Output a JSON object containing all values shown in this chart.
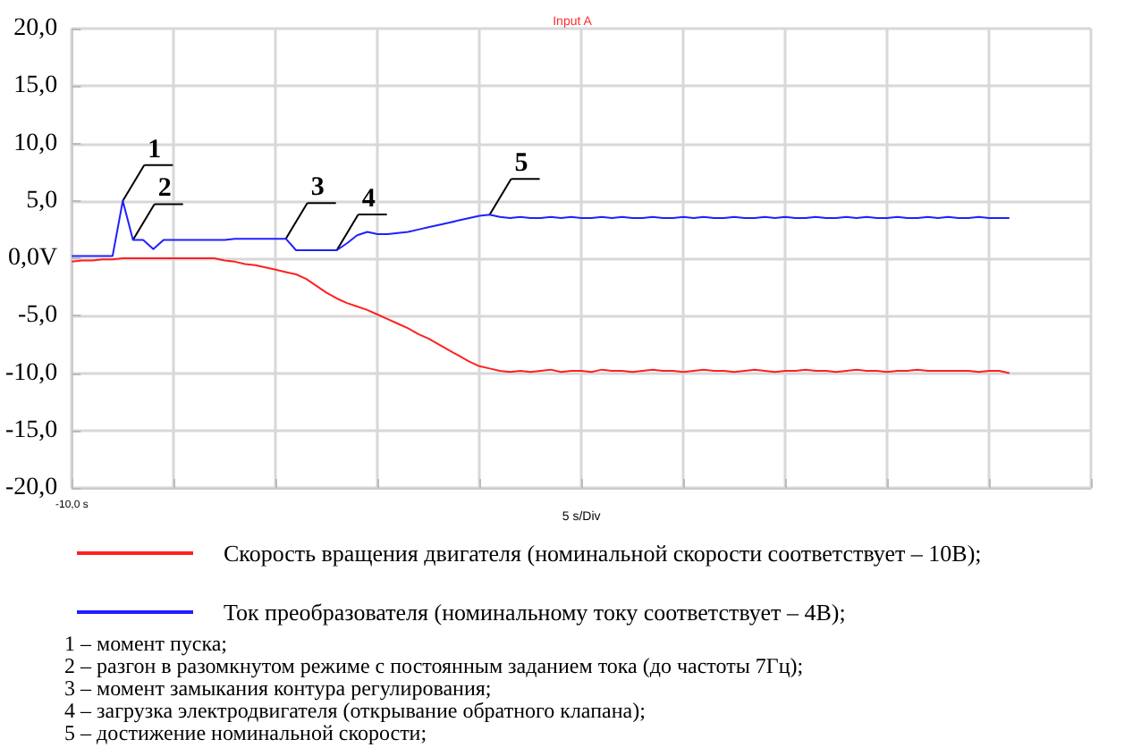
{
  "chart_data": {
    "type": "line",
    "title": "Input A",
    "xlabel": "5 s/Div",
    "categories": [
      null,
      null,
      null,
      null,
      null,
      null,
      null,
      null,
      null,
      null,
      null,
      null,
      null,
      null,
      null,
      null,
      null,
      null,
      null,
      null,
      null,
      null,
      null,
      null,
      null,
      null,
      null,
      null,
      null,
      null,
      null,
      null,
      null,
      null,
      null,
      null,
      null,
      null,
      null,
      null,
      null,
      null,
      null,
      null,
      null,
      null,
      null,
      null,
      null,
      null,
      null,
      null,
      null,
      null,
      null,
      null,
      null,
      null,
      null,
      null,
      null,
      null,
      null,
      null,
      null,
      null,
      null,
      null,
      null,
      null,
      null,
      null,
      null,
      null,
      null,
      null,
      null,
      null,
      null,
      null,
      null,
      null,
      null,
      null,
      null,
      null,
      null,
      null,
      null,
      null,
      null,
      null,
      null,
      null,
      null,
      null,
      null,
      null,
      null,
      null,
      null
    ],
    "ylim": [
      -20,
      20
    ],
    "yticks": [
      {
        "value": -20,
        "label": "-20,0"
      },
      {
        "value": -15,
        "label": "-15,0"
      },
      {
        "value": -10,
        "label": "-10,0"
      },
      {
        "value": -5,
        "label": "-5,0"
      },
      {
        "value": 0,
        "label": "0,0V"
      },
      {
        "value": 5,
        "label": "5,0"
      },
      {
        "value": 10,
        "label": "10,0"
      },
      {
        "value": 15,
        "label": "15,0"
      },
      {
        "value": 20,
        "label": "20,0"
      }
    ],
    "grid": true,
    "legend": "bottom",
    "series": [
      {
        "name": "Скорость вращения двигателя (номинальной скорости соответствует – 10В);",
        "color": "#ff2020",
        "values": [
          -0.3,
          -0.2,
          -0.2,
          -0.1,
          -0.1,
          0,
          0,
          0,
          0,
          0,
          0,
          0,
          0,
          0,
          0,
          -0.2,
          -0.3,
          -0.5,
          -0.6,
          -0.8,
          -1,
          -1.2,
          -1.4,
          -1.8,
          -2.4,
          -3,
          -3.5,
          -3.9,
          -4.2,
          -4.5,
          -4.9,
          -5.3,
          -5.7,
          -6.1,
          -6.6,
          -7,
          -7.5,
          -8,
          -8.5,
          -9,
          -9.4,
          -9.6,
          -9.8,
          -9.9,
          -9.8,
          -9.9,
          -9.8,
          -9.7,
          -9.9,
          -9.8,
          -9.8,
          -9.9,
          -9.7,
          -9.8,
          -9.8,
          -9.9,
          -9.8,
          -9.7,
          -9.8,
          -9.8,
          -9.9,
          -9.8,
          -9.7,
          -9.8,
          -9.8,
          -9.9,
          -9.8,
          -9.7,
          -9.8,
          -9.9,
          -9.8,
          -9.8,
          -9.7,
          -9.8,
          -9.8,
          -9.9,
          -9.8,
          -9.7,
          -9.8,
          -9.8,
          -9.9,
          -9.8,
          -9.8,
          -9.7,
          -9.8,
          -9.8,
          -9.8,
          -9.8,
          -9.8,
          -9.9,
          -9.8,
          -9.8,
          -10,
          null,
          null,
          null,
          null,
          null,
          null,
          null,
          null
        ]
      },
      {
        "name": "Ток преобразователя (номинальному току соответствует – 4В);",
        "color": "#2020ff",
        "values": [
          0.2,
          0.2,
          0.2,
          0.2,
          0.2,
          5,
          1.6,
          1.6,
          0.8,
          1.6,
          1.6,
          1.6,
          1.6,
          1.6,
          1.6,
          1.6,
          1.7,
          1.7,
          1.7,
          1.7,
          1.7,
          1.7,
          0.7,
          0.7,
          0.7,
          0.7,
          0.7,
          1.3,
          2,
          2.3,
          2.1,
          2.1,
          2.2,
          2.3,
          2.5,
          2.7,
          2.9,
          3.1,
          3.3,
          3.5,
          3.7,
          3.8,
          3.6,
          3.5,
          3.6,
          3.5,
          3.5,
          3.6,
          3.5,
          3.6,
          3.5,
          3.5,
          3.6,
          3.5,
          3.6,
          3.5,
          3.5,
          3.6,
          3.5,
          3.5,
          3.6,
          3.5,
          3.6,
          3.5,
          3.5,
          3.6,
          3.5,
          3.5,
          3.6,
          3.5,
          3.6,
          3.5,
          3.5,
          3.6,
          3.5,
          3.5,
          3.6,
          3.5,
          3.6,
          3.5,
          3.5,
          3.6,
          3.5,
          3.5,
          3.6,
          3.5,
          3.6,
          3.5,
          3.5,
          3.6,
          3.5,
          3.5,
          3.5,
          null,
          null,
          null,
          null,
          null,
          null,
          null,
          null
        ]
      }
    ],
    "annotations": [
      "1",
      "2",
      "3",
      "4",
      "5",
      "-10,0 s",
      "1 – момент пуска;",
      "2 – разгон в разомкнутом режиме с постоянным заданием тока (до частоты 7Гц);",
      "3 – момент замыкания контура регулирования;",
      "4 – загрузка электродвигателя (открывание обратного клапана);",
      "5 – достижение номинальной скорости;"
    ]
  }
}
